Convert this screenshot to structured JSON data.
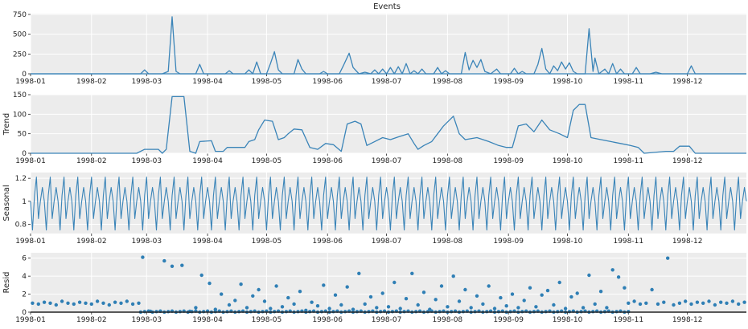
{
  "figure": {
    "title": "Events"
  },
  "colors": {
    "line": "#3a84b8",
    "point": "#2f7fb5",
    "panel_bg": "#ececec",
    "grid": "#ffffff",
    "axis": "#222222"
  },
  "x_ticks": [
    "1998-01",
    "1998-02",
    "1998-03",
    "1998-04",
    "1998-05",
    "1998-06",
    "1998-07",
    "1998-08",
    "1998-09",
    "1998-10",
    "1998-11",
    "1998-12"
  ],
  "chart_data": [
    {
      "type": "line",
      "panel": "events",
      "title": "Events",
      "ylabel": "",
      "xlim": [
        "1998-01-01",
        "1998-12-31"
      ],
      "ylim": [
        0,
        760
      ],
      "y_ticks": [
        0,
        250,
        500,
        750
      ],
      "grid": true,
      "baseline": 0,
      "points": [
        [
          "1998-01-01",
          0
        ],
        [
          "1998-02-26",
          0
        ],
        [
          "1998-02-28",
          50
        ],
        [
          "1998-03-02",
          0
        ],
        [
          "1998-03-09",
          0
        ],
        [
          "1998-03-12",
          30
        ],
        [
          "1998-03-14",
          720
        ],
        [
          "1998-03-16",
          30
        ],
        [
          "1998-03-18",
          0
        ],
        [
          "1998-03-26",
          0
        ],
        [
          "1998-03-28",
          120
        ],
        [
          "1998-03-30",
          0
        ],
        [
          "1998-04-10",
          0
        ],
        [
          "1998-04-12",
          40
        ],
        [
          "1998-04-14",
          0
        ],
        [
          "1998-04-20",
          0
        ],
        [
          "1998-04-22",
          50
        ],
        [
          "1998-04-24",
          0
        ],
        [
          "1998-04-26",
          150
        ],
        [
          "1998-04-28",
          0
        ],
        [
          "1998-05-01",
          0
        ],
        [
          "1998-05-03",
          130
        ],
        [
          "1998-05-05",
          280
        ],
        [
          "1998-05-07",
          50
        ],
        [
          "1998-05-09",
          0
        ],
        [
          "1998-05-15",
          0
        ],
        [
          "1998-05-17",
          180
        ],
        [
          "1998-05-19",
          60
        ],
        [
          "1998-05-21",
          0
        ],
        [
          "1998-05-28",
          0
        ],
        [
          "1998-05-30",
          30
        ],
        [
          "1998-06-01",
          0
        ],
        [
          "1998-06-07",
          0
        ],
        [
          "1998-06-09",
          100
        ],
        [
          "1998-06-12",
          260
        ],
        [
          "1998-06-14",
          80
        ],
        [
          "1998-06-17",
          0
        ],
        [
          "1998-06-20",
          20
        ],
        [
          "1998-06-23",
          0
        ],
        [
          "1998-06-25",
          50
        ],
        [
          "1998-06-27",
          0
        ],
        [
          "1998-06-29",
          60
        ],
        [
          "1998-07-01",
          0
        ],
        [
          "1998-07-03",
          80
        ],
        [
          "1998-07-05",
          0
        ],
        [
          "1998-07-07",
          90
        ],
        [
          "1998-07-09",
          0
        ],
        [
          "1998-07-11",
          130
        ],
        [
          "1998-07-13",
          0
        ],
        [
          "1998-07-15",
          40
        ],
        [
          "1998-07-17",
          0
        ],
        [
          "1998-07-19",
          60
        ],
        [
          "1998-07-21",
          0
        ],
        [
          "1998-07-25",
          0
        ],
        [
          "1998-07-27",
          80
        ],
        [
          "1998-07-29",
          0
        ],
        [
          "1998-07-31",
          40
        ],
        [
          "1998-08-02",
          0
        ],
        [
          "1998-08-08",
          0
        ],
        [
          "1998-08-10",
          270
        ],
        [
          "1998-08-12",
          50
        ],
        [
          "1998-08-14",
          170
        ],
        [
          "1998-08-16",
          80
        ],
        [
          "1998-08-18",
          180
        ],
        [
          "1998-08-20",
          30
        ],
        [
          "1998-08-23",
          0
        ],
        [
          "1998-08-26",
          60
        ],
        [
          "1998-08-28",
          0
        ],
        [
          "1998-09-02",
          0
        ],
        [
          "1998-09-04",
          70
        ],
        [
          "1998-09-06",
          0
        ],
        [
          "1998-09-08",
          30
        ],
        [
          "1998-09-10",
          0
        ],
        [
          "1998-09-14",
          0
        ],
        [
          "1998-09-16",
          120
        ],
        [
          "1998-09-18",
          320
        ],
        [
          "1998-09-20",
          60
        ],
        [
          "1998-09-22",
          0
        ],
        [
          "1998-09-24",
          100
        ],
        [
          "1998-09-26",
          40
        ],
        [
          "1998-09-28",
          150
        ],
        [
          "1998-09-30",
          60
        ],
        [
          "1998-10-02",
          140
        ],
        [
          "1998-10-04",
          30
        ],
        [
          "1998-10-06",
          0
        ],
        [
          "1998-10-10",
          0
        ],
        [
          "1998-10-12",
          570
        ],
        [
          "1998-10-14",
          30
        ],
        [
          "1998-10-15",
          200
        ],
        [
          "1998-10-17",
          0
        ],
        [
          "1998-10-20",
          60
        ],
        [
          "1998-10-22",
          0
        ],
        [
          "1998-10-24",
          130
        ],
        [
          "1998-10-26",
          0
        ],
        [
          "1998-10-28",
          60
        ],
        [
          "1998-10-30",
          0
        ],
        [
          "1998-11-03",
          0
        ],
        [
          "1998-11-05",
          80
        ],
        [
          "1998-11-07",
          0
        ],
        [
          "1998-11-12",
          0
        ],
        [
          "1998-11-15",
          20
        ],
        [
          "1998-11-18",
          0
        ],
        [
          "1998-12-01",
          0
        ],
        [
          "1998-12-03",
          100
        ],
        [
          "1998-12-05",
          0
        ],
        [
          "1998-12-31",
          0
        ]
      ]
    },
    {
      "type": "line",
      "panel": "trend",
      "ylabel": "Trend",
      "xlim": [
        "1998-01-01",
        "1998-12-31"
      ],
      "ylim": [
        0,
        150
      ],
      "y_ticks": [
        0,
        50,
        100,
        150
      ],
      "grid": true,
      "points": [
        [
          "1998-01-01",
          0
        ],
        [
          "1998-02-24",
          0
        ],
        [
          "1998-02-28",
          10
        ],
        [
          "1998-03-07",
          10
        ],
        [
          "1998-03-09",
          0
        ],
        [
          "1998-03-11",
          10
        ],
        [
          "1998-03-14",
          145
        ],
        [
          "1998-03-20",
          145
        ],
        [
          "1998-03-23",
          5
        ],
        [
          "1998-03-26",
          0
        ],
        [
          "1998-03-28",
          30
        ],
        [
          "1998-04-03",
          32
        ],
        [
          "1998-04-05",
          5
        ],
        [
          "1998-04-09",
          5
        ],
        [
          "1998-04-11",
          15
        ],
        [
          "1998-04-20",
          15
        ],
        [
          "1998-04-22",
          30
        ],
        [
          "1998-04-25",
          35
        ],
        [
          "1998-04-27",
          60
        ],
        [
          "1998-04-30",
          85
        ],
        [
          "1998-05-04",
          82
        ],
        [
          "1998-05-07",
          35
        ],
        [
          "1998-05-10",
          40
        ],
        [
          "1998-05-12",
          50
        ],
        [
          "1998-05-15",
          62
        ],
        [
          "1998-05-19",
          60
        ],
        [
          "1998-05-23",
          15
        ],
        [
          "1998-05-27",
          10
        ],
        [
          "1998-05-31",
          25
        ],
        [
          "1998-06-04",
          22
        ],
        [
          "1998-06-08",
          5
        ],
        [
          "1998-06-11",
          75
        ],
        [
          "1998-06-15",
          82
        ],
        [
          "1998-06-18",
          75
        ],
        [
          "1998-06-21",
          20
        ],
        [
          "1998-06-25",
          30
        ],
        [
          "1998-06-29",
          40
        ],
        [
          "1998-07-03",
          35
        ],
        [
          "1998-07-07",
          42
        ],
        [
          "1998-07-12",
          50
        ],
        [
          "1998-07-15",
          25
        ],
        [
          "1998-07-17",
          10
        ],
        [
          "1998-07-20",
          20
        ],
        [
          "1998-07-24",
          30
        ],
        [
          "1998-07-27",
          50
        ],
        [
          "1998-07-30",
          70
        ],
        [
          "1998-08-04",
          95
        ],
        [
          "1998-08-07",
          50
        ],
        [
          "1998-08-10",
          35
        ],
        [
          "1998-08-16",
          40
        ],
        [
          "1998-08-22",
          30
        ],
        [
          "1998-08-27",
          20
        ],
        [
          "1998-08-31",
          15
        ],
        [
          "1998-09-03",
          15
        ],
        [
          "1998-09-06",
          70
        ],
        [
          "1998-09-10",
          75
        ],
        [
          "1998-09-14",
          55
        ],
        [
          "1998-09-18",
          85
        ],
        [
          "1998-09-22",
          60
        ],
        [
          "1998-09-27",
          50
        ],
        [
          "1998-10-01",
          40
        ],
        [
          "1998-10-04",
          110
        ],
        [
          "1998-10-07",
          125
        ],
        [
          "1998-10-10",
          125
        ],
        [
          "1998-10-13",
          40
        ],
        [
          "1998-10-18",
          35
        ],
        [
          "1998-10-23",
          30
        ],
        [
          "1998-10-28",
          25
        ],
        [
          "1998-11-02",
          20
        ],
        [
          "1998-11-06",
          15
        ],
        [
          "1998-11-09",
          0
        ],
        [
          "1998-11-20",
          5
        ],
        [
          "1998-11-24",
          5
        ],
        [
          "1998-11-27",
          18
        ],
        [
          "1998-12-02",
          18
        ],
        [
          "1998-12-05",
          0
        ],
        [
          "1998-12-31",
          0
        ]
      ]
    },
    {
      "type": "line",
      "panel": "seasonal",
      "ylabel": "Seasonal",
      "xlim": [
        "1998-01-01",
        "1998-12-31"
      ],
      "ylim": [
        0.72,
        1.25
      ],
      "y_ticks": [
        0.8,
        1.0,
        1.2
      ],
      "grid": true,
      "period_days": 7,
      "pattern": [
        1.0,
        0.75,
        1.05,
        1.21,
        0.85,
        1.0,
        1.12
      ]
    },
    {
      "type": "scatter",
      "panel": "resid",
      "ylabel": "Resid",
      "xlim": [
        "1998-01-01",
        "1998-12-31"
      ],
      "ylim": [
        0,
        6.6
      ],
      "y_ticks": [
        0,
        2,
        4,
        6
      ],
      "grid": true,
      "baseline": 0,
      "points": [
        [
          "1998-01-02",
          1.0
        ],
        [
          "1998-01-05",
          0.9
        ],
        [
          "1998-01-08",
          1.1
        ],
        [
          "1998-01-11",
          1.0
        ],
        [
          "1998-01-14",
          0.8
        ],
        [
          "1998-01-17",
          1.2
        ],
        [
          "1998-01-20",
          1.0
        ],
        [
          "1998-01-23",
          0.9
        ],
        [
          "1998-01-26",
          1.1
        ],
        [
          "1998-01-29",
          1.0
        ],
        [
          "1998-02-01",
          0.9
        ],
        [
          "1998-02-04",
          1.2
        ],
        [
          "1998-02-07",
          1.0
        ],
        [
          "1998-02-10",
          0.8
        ],
        [
          "1998-02-13",
          1.1
        ],
        [
          "1998-02-16",
          1.0
        ],
        [
          "1998-02-19",
          1.2
        ],
        [
          "1998-02-22",
          0.9
        ],
        [
          "1998-02-25",
          1.0
        ],
        [
          "1998-02-27",
          6.1
        ],
        [
          "1998-03-03",
          0.1
        ],
        [
          "1998-03-08",
          0.1
        ],
        [
          "1998-03-10",
          5.7
        ],
        [
          "1998-03-14",
          5.1
        ],
        [
          "1998-03-19",
          5.2
        ],
        [
          "1998-03-23",
          0.1
        ],
        [
          "1998-03-26",
          0.5
        ],
        [
          "1998-03-29",
          4.1
        ],
        [
          "1998-04-02",
          3.2
        ],
        [
          "1998-04-05",
          0.3
        ],
        [
          "1998-04-08",
          2.0
        ],
        [
          "1998-04-12",
          0.8
        ],
        [
          "1998-04-15",
          1.3
        ],
        [
          "1998-04-18",
          3.1
        ],
        [
          "1998-04-21",
          0.5
        ],
        [
          "1998-04-24",
          1.8
        ],
        [
          "1998-04-27",
          2.5
        ],
        [
          "1998-04-30",
          1.2
        ],
        [
          "1998-05-03",
          0.4
        ],
        [
          "1998-05-06",
          2.9
        ],
        [
          "1998-05-09",
          0.6
        ],
        [
          "1998-05-12",
          1.6
        ],
        [
          "1998-05-15",
          0.9
        ],
        [
          "1998-05-18",
          2.3
        ],
        [
          "1998-05-21",
          0.2
        ],
        [
          "1998-05-24",
          1.1
        ],
        [
          "1998-05-27",
          0.7
        ],
        [
          "1998-05-30",
          3.0
        ],
        [
          "1998-06-02",
          0.4
        ],
        [
          "1998-06-05",
          1.9
        ],
        [
          "1998-06-08",
          0.8
        ],
        [
          "1998-06-11",
          2.8
        ],
        [
          "1998-06-14",
          0.3
        ],
        [
          "1998-06-17",
          4.3
        ],
        [
          "1998-06-20",
          0.9
        ],
        [
          "1998-06-23",
          1.7
        ],
        [
          "1998-06-26",
          0.5
        ],
        [
          "1998-06-29",
          2.1
        ],
        [
          "1998-07-02",
          0.6
        ],
        [
          "1998-07-05",
          3.3
        ],
        [
          "1998-07-08",
          0.4
        ],
        [
          "1998-07-11",
          1.5
        ],
        [
          "1998-07-14",
          4.3
        ],
        [
          "1998-07-17",
          0.8
        ],
        [
          "1998-07-20",
          2.2
        ],
        [
          "1998-07-23",
          0.3
        ],
        [
          "1998-07-26",
          1.4
        ],
        [
          "1998-07-29",
          2.9
        ],
        [
          "1998-08-01",
          0.6
        ],
        [
          "1998-08-04",
          4.0
        ],
        [
          "1998-08-07",
          1.2
        ],
        [
          "1998-08-10",
          2.5
        ],
        [
          "1998-08-13",
          0.5
        ],
        [
          "1998-08-16",
          1.8
        ],
        [
          "1998-08-19",
          0.9
        ],
        [
          "1998-08-22",
          2.9
        ],
        [
          "1998-08-25",
          0.4
        ],
        [
          "1998-08-28",
          1.6
        ],
        [
          "1998-08-31",
          0.7
        ],
        [
          "1998-09-03",
          2.0
        ],
        [
          "1998-09-06",
          0.5
        ],
        [
          "1998-09-09",
          1.3
        ],
        [
          "1998-09-12",
          2.7
        ],
        [
          "1998-09-15",
          0.6
        ],
        [
          "1998-09-18",
          1.9
        ],
        [
          "1998-09-21",
          2.4
        ],
        [
          "1998-09-24",
          0.8
        ],
        [
          "1998-09-27",
          3.3
        ],
        [
          "1998-09-30",
          0.4
        ],
        [
          "1998-10-03",
          1.7
        ],
        [
          "1998-10-06",
          2.1
        ],
        [
          "1998-10-09",
          0.5
        ],
        [
          "1998-10-12",
          4.1
        ],
        [
          "1998-10-15",
          0.9
        ],
        [
          "1998-10-18",
          2.3
        ],
        [
          "1998-10-21",
          0.5
        ],
        [
          "1998-10-24",
          4.7
        ],
        [
          "1998-10-27",
          3.9
        ],
        [
          "1998-10-30",
          2.7
        ],
        [
          "1998-11-01",
          1.0
        ],
        [
          "1998-11-04",
          1.2
        ],
        [
          "1998-11-07",
          0.9
        ],
        [
          "1998-11-10",
          1.0
        ],
        [
          "1998-11-13",
          2.5
        ],
        [
          "1998-11-16",
          0.9
        ],
        [
          "1998-11-19",
          1.1
        ],
        [
          "1998-11-21",
          6.0
        ],
        [
          "1998-11-24",
          0.8
        ],
        [
          "1998-11-27",
          1.0
        ],
        [
          "1998-11-30",
          1.2
        ],
        [
          "1998-12-03",
          0.9
        ],
        [
          "1998-12-06",
          1.1
        ],
        [
          "1998-12-09",
          1.0
        ],
        [
          "1998-12-12",
          1.2
        ],
        [
          "1998-12-15",
          0.8
        ],
        [
          "1998-12-18",
          1.1
        ],
        [
          "1998-12-21",
          1.0
        ],
        [
          "1998-12-24",
          1.2
        ],
        [
          "1998-12-27",
          0.9
        ],
        [
          "1998-12-30",
          1.1
        ]
      ]
    }
  ]
}
